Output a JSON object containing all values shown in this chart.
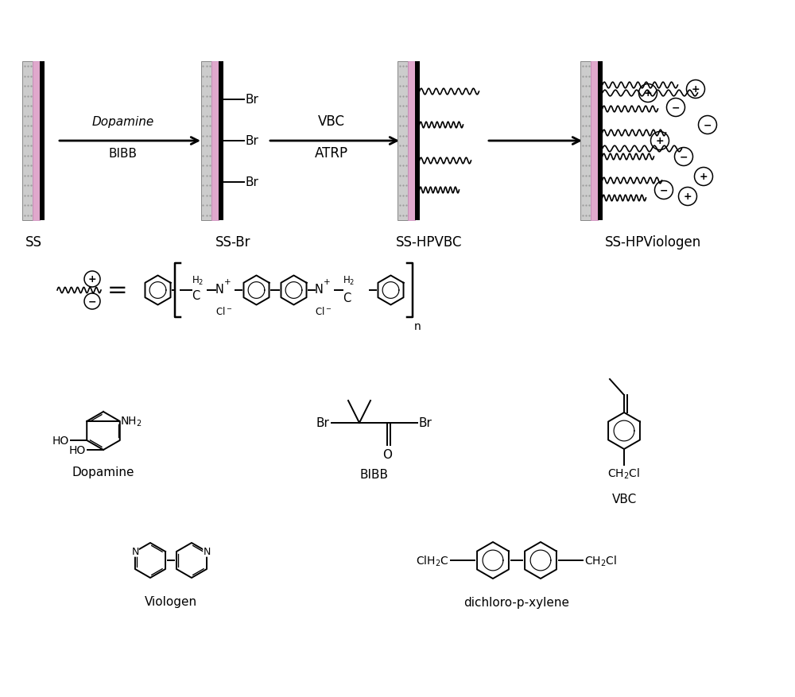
{
  "bg_color": "#ffffff",
  "labels": {
    "SS": "SS",
    "SS_Br": "SS-Br",
    "SS_HPVBC": "SS-HPVBC",
    "SS_HPViologen": "SS-HPViologen",
    "Dopamine": "Dopamine",
    "BIBB": "BIBB",
    "VBC": "VBC",
    "Viologen": "Viologen",
    "dichloro": "dichloro-p-xylene",
    "reagent1_top": "Dopamine",
    "reagent1_bot": "BIBB",
    "reagent2_top": "VBC",
    "reagent2_bot": "ATRP"
  }
}
